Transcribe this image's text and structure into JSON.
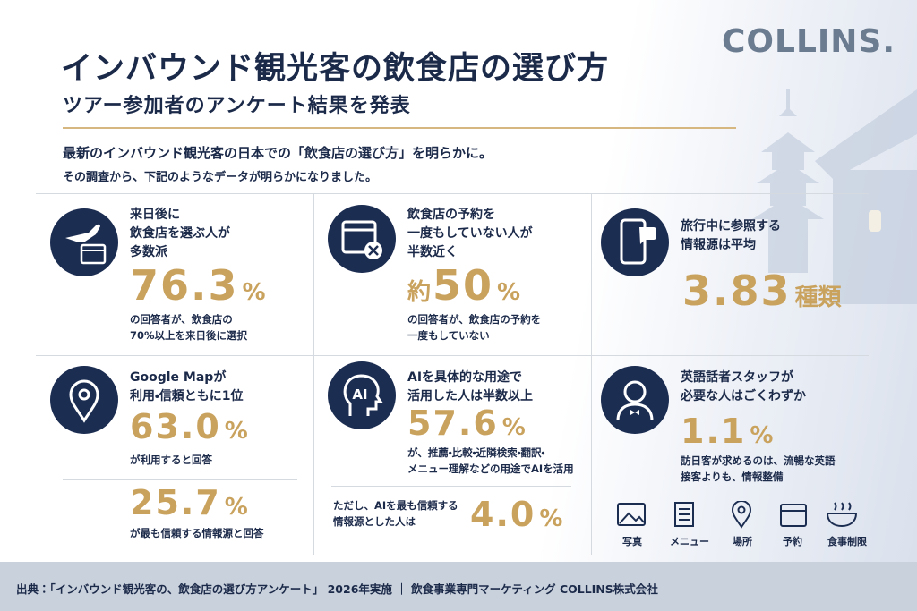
{
  "brand": "COLLINS.",
  "header": {
    "title": "インバウンド観光客の飲食店の選び方",
    "subtitle": "ツアー参加者のアンケート結果を発表"
  },
  "intro": [
    "最新のインバウンド観光客の日本での「飲食店の選び方」を明らかに。",
    "その調査から、下記のようなデータが明らかになりました。"
  ],
  "cards": [
    {
      "heading": [
        "来日後に",
        "飲食店を選ぶ人が",
        "多数派"
      ],
      "stat": "76.3",
      "unit": "%",
      "note": [
        "の回答者が、飲食店の",
        "70%以上を来日後に選択"
      ]
    },
    {
      "heading": [
        "飲食店の予約を",
        "一度もしていない人が",
        "半数近く"
      ],
      "prefix": "約",
      "stat": "50",
      "unit": "%",
      "note": [
        "の回答者が、飲食店の予約を",
        "一度もしていない"
      ]
    },
    {
      "heading": [
        "旅行中に参照する",
        "情報源は平均"
      ],
      "stat": "3.83",
      "unit": "種類"
    },
    {
      "heading": [
        "Google Mapが",
        "利用・信頼ともに1位"
      ],
      "stat": "63.0",
      "unit": "%",
      "note": [
        "が利用すると回答"
      ],
      "second": {
        "stat": "25.7",
        "unit": "%",
        "note": [
          "が最も信頼する情報源と回答"
        ]
      }
    },
    {
      "heading": [
        "AIを具体的な用途で",
        "活用した人は半数以上"
      ],
      "stat": "57.6",
      "unit": "%",
      "note": [
        "が、推薦・比較・近隣検索・翻訳・",
        "メニュー理解などの用途でAIを活用"
      ],
      "second": {
        "note": [
          "ただし、AIを最も信頼する",
          "情報源とした人は"
        ],
        "stat": "4.0",
        "unit": "%"
      }
    },
    {
      "heading": [
        "英語話者スタッフが",
        "必要な人はごくわずか"
      ],
      "stat": "1.1",
      "unit": "%",
      "note": [
        "訪日客が求めるのは、流暢な英語",
        "接客よりも、情報整備"
      ],
      "needs": [
        "写真",
        "メニュー",
        "場所",
        "予約",
        "食事制限"
      ]
    }
  ],
  "footer": "出典：「インバウンド観光客の、飲食店の選び方アンケート」 2026年実施 ｜ 飲食事業専門マーケティング COLLINS株式会社"
}
